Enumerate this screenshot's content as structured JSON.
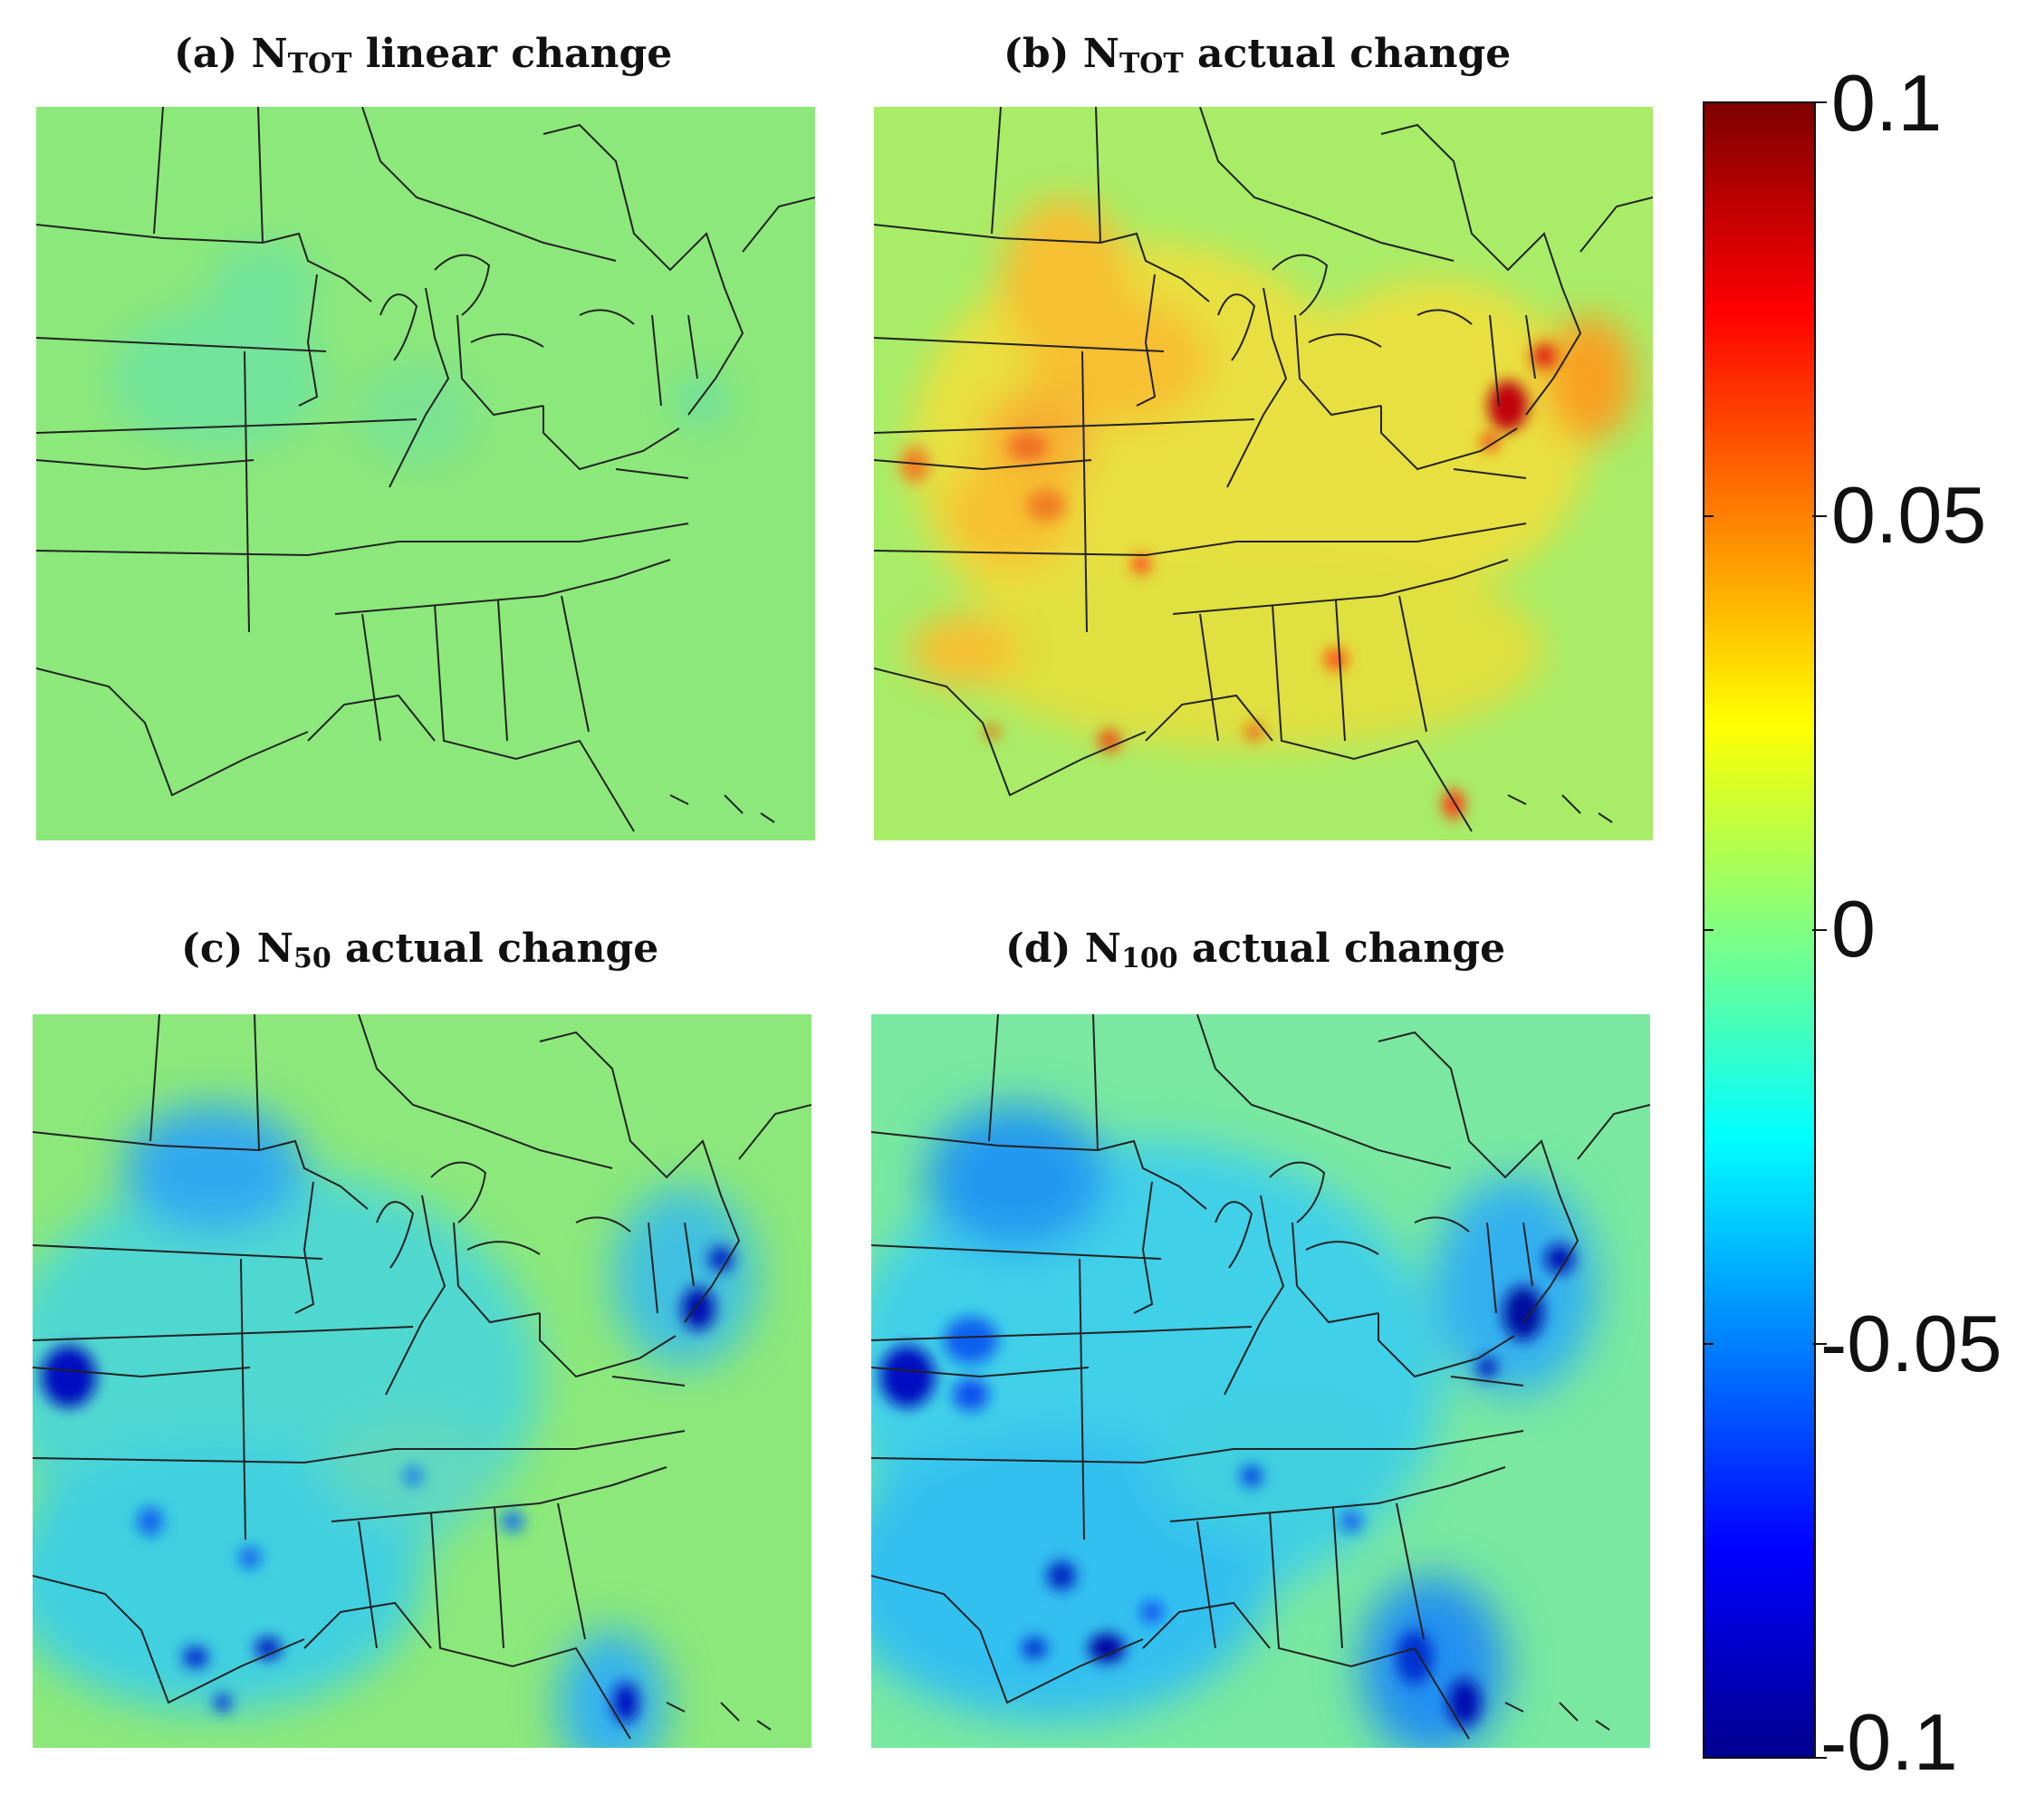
{
  "panels": [
    {
      "prefix": "(a) N",
      "sub": "TOT",
      "suffix": " linear change"
    },
    {
      "prefix": "(b) N",
      "sub": "TOT",
      "suffix": " actual change"
    },
    {
      "prefix": "(c) N",
      "sub": "50",
      "suffix": " actual change"
    },
    {
      "prefix": "(d) N",
      "sub": "100",
      "suffix": " actual change"
    }
  ],
  "colorbar": {
    "labels": [
      "0.1",
      "0.05",
      "0",
      "-0.05",
      "-0.1"
    ],
    "min": -0.1,
    "max": 0.1,
    "colormap": "jet"
  },
  "colors": {
    "neutral": "#8ce87a",
    "positive": "#ff9020",
    "negative": "#1060ff"
  }
}
